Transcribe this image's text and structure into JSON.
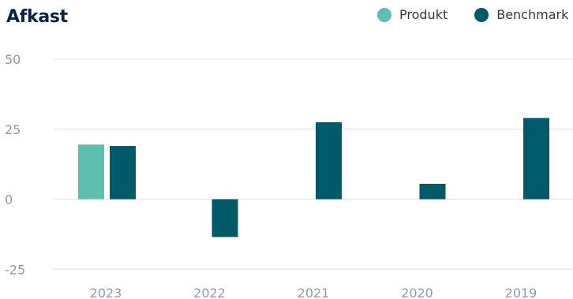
{
  "chart_data": {
    "type": "bar",
    "title": "Afkast",
    "xlabel": "",
    "ylabel": "",
    "categories": [
      "2023",
      "2022",
      "2021",
      "2020",
      "2019"
    ],
    "series": [
      {
        "name": "Produkt",
        "color": "#5cc0b0",
        "values": [
          19.5,
          null,
          null,
          null,
          null
        ]
      },
      {
        "name": "Benchmark",
        "color": "#005a6a",
        "values": [
          19,
          -13.5,
          27.5,
          5.5,
          29
        ]
      }
    ],
    "ylim": [
      -25,
      50
    ],
    "yticks": [
      50,
      25,
      0,
      -25
    ],
    "grid": true,
    "legend_position": "top-right"
  }
}
